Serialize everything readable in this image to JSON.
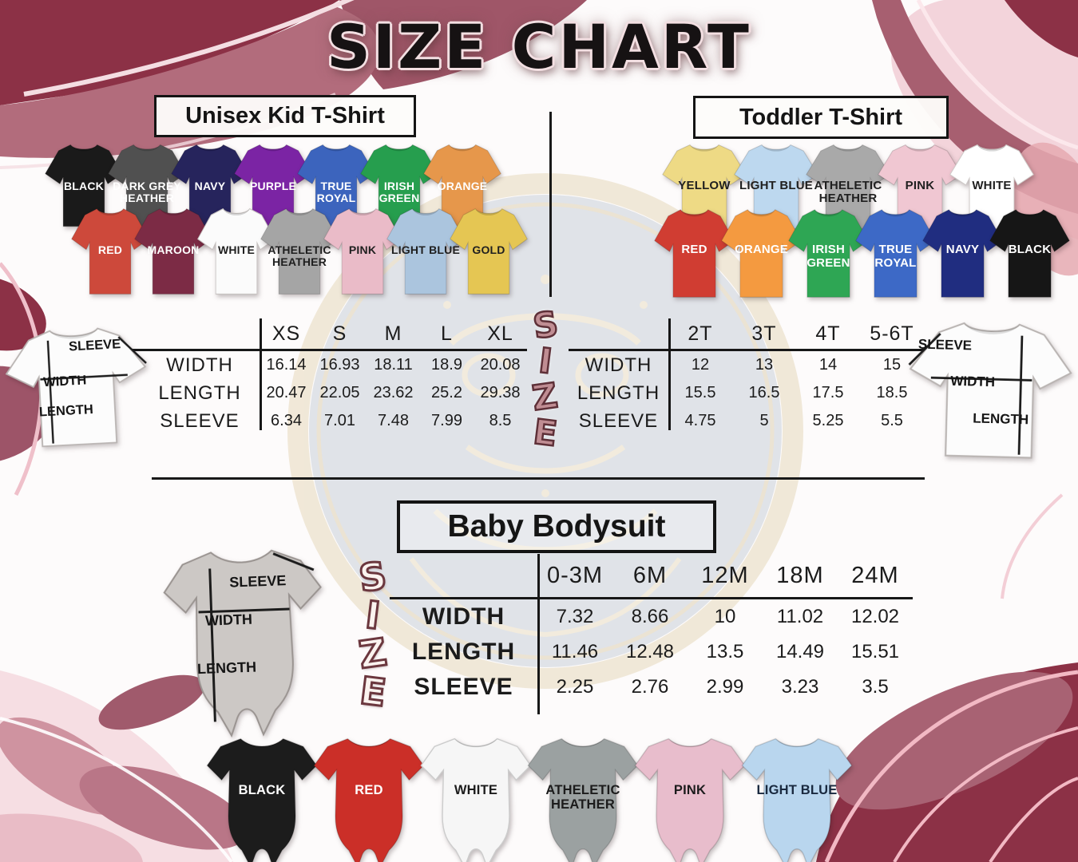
{
  "title": "SIZE CHART",
  "size_word": [
    "S",
    "I",
    "Z",
    "E"
  ],
  "measure_labels": {
    "sleeve": "SLEEVE",
    "width": "WIDTH",
    "length": "LENGTH"
  },
  "palette": {
    "accent_maroon": "#8c3146",
    "accent_mauve": "#b26c7c",
    "accent_pink": "#f3d4db",
    "emblem_cream": "#e5d6b6",
    "emblem_blue": "#93a2b4",
    "text": "#1b1b1b"
  },
  "garments": {
    "unisex_rows": [
      [
        {
          "label": "BLACK",
          "color": "#1a1a1a",
          "text": "#ffffff"
        },
        {
          "label": "DARK GREY HEATHER",
          "color": "#505050",
          "text": "#ffffff"
        },
        {
          "label": "NAVY",
          "color": "#26245c",
          "text": "#ffffff"
        },
        {
          "label": "PURPLE",
          "color": "#7b24a4",
          "text": "#ffffff"
        },
        {
          "label": "TRUE ROYAL",
          "color": "#3c64bd",
          "text": "#ffffff"
        },
        {
          "label": "IRISH GREEN",
          "color": "#269e4e",
          "text": "#ffffff"
        },
        {
          "label": "ORANGE",
          "color": "#e6974b",
          "text": "#ffffff"
        }
      ],
      [
        {
          "label": "RED",
          "color": "#cd493b",
          "text": "#ffffff"
        },
        {
          "label": "MAROON",
          "color": "#7c2b45",
          "text": "#ffffff"
        },
        {
          "label": "WHITE",
          "color": "#fbfbfb",
          "text": "#1f1f1f",
          "edge": "#c8c3c1"
        },
        {
          "label": "ATHELETIC HEATHER",
          "color": "#a5a5a5",
          "text": "#1f1f1f"
        },
        {
          "label": "PINK",
          "color": "#eabbc8",
          "text": "#1f1f1f"
        },
        {
          "label": "LIGHT BLUE",
          "color": "#abc5de",
          "text": "#1f1f1f"
        },
        {
          "label": "GOLD",
          "color": "#e5c653",
          "text": "#1f1f1f"
        }
      ]
    ],
    "toddler_rows": [
      [
        {
          "label": "YELLOW",
          "color": "#eeda85",
          "text": "#1f1f1f"
        },
        {
          "label": "LIGHT BLUE",
          "color": "#bdd8ef",
          "text": "#1f1f1f"
        },
        {
          "label": "ATHELETIC HEATHER",
          "color": "#a9a9a9",
          "text": "#1f1f1f"
        },
        {
          "label": "PINK",
          "color": "#f0c7d2",
          "text": "#1f1f1f"
        },
        {
          "label": "WHITE",
          "color": "#ffffff",
          "text": "#1f1f1f",
          "edge": "#cfcac8"
        }
      ],
      [
        {
          "label": "RED",
          "color": "#d03d32",
          "text": "#ffffff"
        },
        {
          "label": "ORANGE",
          "color": "#f49a40",
          "text": "#ffffff"
        },
        {
          "label": "IRISH GREEN",
          "color": "#2ea654",
          "text": "#ffffff"
        },
        {
          "label": "TRUE ROYAL",
          "color": "#3d69c6",
          "text": "#ffffff"
        },
        {
          "label": "NAVY",
          "color": "#202d80",
          "text": "#ffffff"
        },
        {
          "label": "BLACK",
          "color": "#161616",
          "text": "#ffffff"
        }
      ]
    ],
    "baby_suits": [
      {
        "label": "BLACK",
        "color": "#1c1c1c",
        "text": "#ffffff"
      },
      {
        "label": "RED",
        "color": "#cb2f28",
        "text": "#ffffff"
      },
      {
        "label": "WHITE",
        "color": "#f6f6f6",
        "text": "#1c1c1c",
        "edge": "#cccccc"
      },
      {
        "label": "ATHELETIC HEATHER",
        "color": "#9ba1a1",
        "text": "#1c1c1c"
      },
      {
        "label": "PINK",
        "color": "#e8bdcc",
        "text": "#1c1c1c"
      },
      {
        "label": "LIGHT BLUE",
        "color": "#b9d6ee",
        "text": "#19293f"
      }
    ]
  },
  "chart_data": [
    {
      "type": "table",
      "title": "Unisex Kid T-Shirt",
      "columns": [
        "XS",
        "S",
        "M",
        "L",
        "XL"
      ],
      "rows": [
        {
          "label": "WIDTH",
          "values": [
            "16.14",
            "16.93",
            "18.11",
            "18.9",
            "20.08"
          ]
        },
        {
          "label": "LENGTH",
          "values": [
            "20.47",
            "22.05",
            "23.62",
            "25.2",
            "29.38"
          ]
        },
        {
          "label": "SLEEVE",
          "values": [
            "6.34",
            "7.01",
            "7.48",
            "7.99",
            "8.5"
          ]
        }
      ]
    },
    {
      "type": "table",
      "title": "Toddler T-Shirt",
      "columns": [
        "2T",
        "3T",
        "4T",
        "5-6T"
      ],
      "rows": [
        {
          "label": "WIDTH",
          "values": [
            "12",
            "13",
            "14",
            "15"
          ]
        },
        {
          "label": "LENGTH",
          "values": [
            "15.5",
            "16.5",
            "17.5",
            "18.5"
          ]
        },
        {
          "label": "SLEEVE",
          "values": [
            "4.75",
            "5",
            "5.25",
            "5.5"
          ]
        }
      ]
    },
    {
      "type": "table",
      "title": "Baby Bodysuit",
      "columns": [
        "0-3M",
        "6M",
        "12M",
        "18M",
        "24M"
      ],
      "rows": [
        {
          "label": "WIDTH",
          "values": [
            "7.32",
            "8.66",
            "10",
            "11.02",
            "12.02"
          ]
        },
        {
          "label": "LENGTH",
          "values": [
            "11.46",
            "12.48",
            "13.5",
            "14.49",
            "15.51"
          ]
        },
        {
          "label": "SLEEVE",
          "values": [
            "2.25",
            "2.76",
            "2.99",
            "3.23",
            "3.5"
          ]
        }
      ]
    }
  ]
}
